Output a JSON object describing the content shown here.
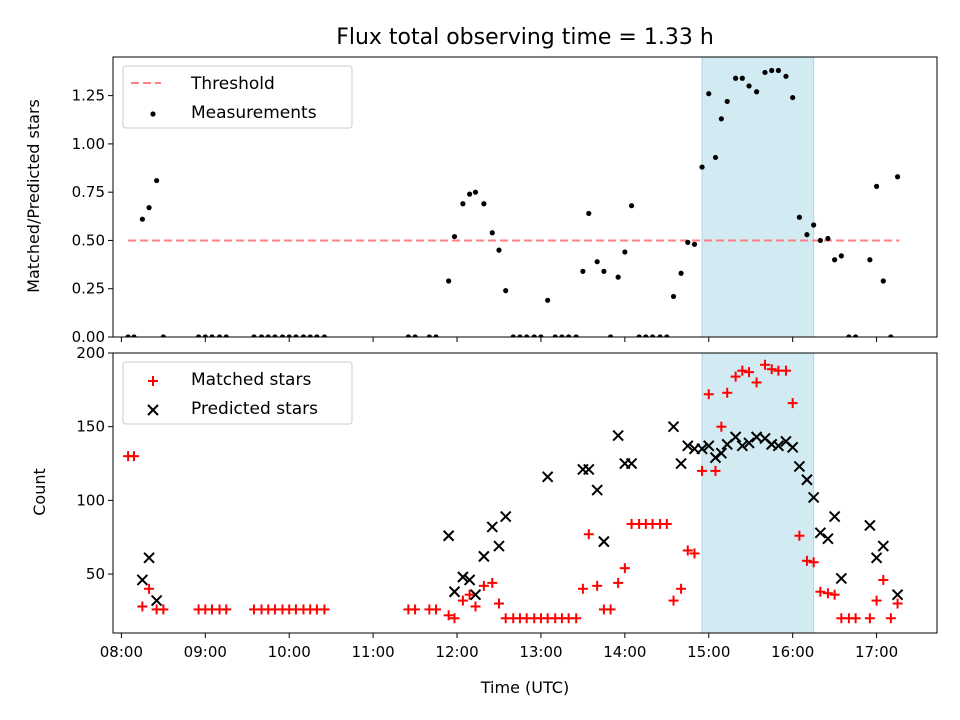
{
  "title": "Flux total observing time = 1.33 h",
  "chart_data": [
    {
      "type": "scatter",
      "ylabel": "Matched/Predicted stars",
      "xlim": [
        7.9,
        17.72
      ],
      "ylim": [
        0,
        1.45
      ],
      "yticks": [
        0.0,
        0.25,
        0.5,
        0.75,
        1.0,
        1.25
      ],
      "ytick_labels": [
        "0.00",
        "0.25",
        "0.50",
        "0.75",
        "1.00",
        "1.25"
      ],
      "highlight": {
        "x0": 14.92,
        "x1": 16.25,
        "color": "#add8e6"
      },
      "legend": {
        "position": "upper left",
        "entries": [
          {
            "label": "Threshold",
            "kind": "dashed-line",
            "color": "#ff7f7f"
          },
          {
            "label": "Measurements",
            "kind": "dot",
            "color": "#000000"
          }
        ]
      },
      "threshold": {
        "name": "Threshold",
        "value": 0.5,
        "x": [
          8.08,
          17.27
        ],
        "color": "#ff7f7f"
      },
      "measurements": {
        "name": "Measurements",
        "x": [
          8.08,
          8.15,
          8.25,
          8.33,
          8.42,
          8.5,
          8.92,
          9.0,
          9.08,
          9.17,
          9.25,
          9.58,
          9.67,
          9.75,
          9.83,
          9.92,
          10.0,
          10.08,
          10.17,
          10.25,
          10.33,
          10.42,
          11.42,
          11.5,
          11.67,
          11.75,
          11.9,
          11.97,
          12.07,
          12.15,
          12.22,
          12.32,
          12.42,
          12.5,
          12.58,
          12.67,
          12.75,
          12.83,
          12.92,
          13.0,
          13.08,
          13.17,
          13.25,
          13.33,
          13.42,
          13.5,
          13.57,
          13.67,
          13.75,
          13.83,
          13.92,
          14.0,
          14.08,
          14.17,
          14.25,
          14.33,
          14.42,
          14.5,
          14.58,
          14.67,
          14.75,
          14.83,
          14.92,
          15.0,
          15.08,
          15.15,
          15.22,
          15.32,
          15.4,
          15.48,
          15.57,
          15.67,
          15.75,
          15.83,
          15.92,
          16.0,
          16.08,
          16.17,
          16.25,
          16.33,
          16.42,
          16.5,
          16.58,
          16.67,
          16.75,
          16.92,
          17.0,
          17.08,
          17.17,
          17.25
        ],
        "y": [
          0,
          0,
          0.61,
          0.67,
          0.81,
          0,
          0,
          0,
          0,
          0,
          0,
          0,
          0,
          0,
          0,
          0,
          0,
          0,
          0,
          0,
          0,
          0,
          0,
          0,
          0,
          0,
          0.29,
          0.52,
          0.69,
          0.74,
          0.75,
          0.69,
          0.54,
          0.45,
          0.24,
          0,
          0,
          0,
          0,
          0,
          0.19,
          0,
          0,
          0,
          0,
          0.34,
          0.64,
          0.39,
          0.34,
          0,
          0.31,
          0.44,
          0.68,
          0,
          0,
          0,
          0,
          0,
          0.21,
          0.33,
          0.49,
          0.48,
          0.88,
          1.26,
          0.93,
          1.13,
          1.22,
          1.34,
          1.34,
          1.3,
          1.27,
          1.37,
          1.38,
          1.38,
          1.35,
          1.24,
          0.62,
          0.53,
          0.58,
          0.5,
          0.51,
          0.4,
          0.42,
          0,
          0,
          0.4,
          0.78,
          0.29,
          0,
          0.83
        ]
      }
    },
    {
      "type": "scatter",
      "xlabel": "Time (UTC)",
      "ylabel": "Count",
      "xlim": [
        7.9,
        17.72
      ],
      "ylim": [
        10,
        200
      ],
      "xticks": [
        8,
        9,
        10,
        11,
        12,
        13,
        14,
        15,
        16,
        17
      ],
      "xtick_labels": [
        "08:00",
        "09:00",
        "10:00",
        "11:00",
        "12:00",
        "13:00",
        "14:00",
        "15:00",
        "16:00",
        "17:00"
      ],
      "yticks": [
        50,
        100,
        150,
        200
      ],
      "ytick_labels": [
        "50",
        "100",
        "150",
        "200"
      ],
      "highlight": {
        "x0": 14.92,
        "x1": 16.25,
        "color": "#add8e6"
      },
      "legend": {
        "position": "upper left",
        "entries": [
          {
            "label": "Matched stars",
            "kind": "plus",
            "color": "#ff0000"
          },
          {
            "label": "Predicted stars",
            "kind": "cross",
            "color": "#000000"
          }
        ]
      },
      "series": [
        {
          "name": "Matched stars",
          "marker": "plus",
          "color": "#ff0000",
          "x": [
            8.08,
            8.15,
            8.25,
            8.33,
            8.42,
            8.5,
            8.92,
            9.0,
            9.08,
            9.17,
            9.25,
            9.58,
            9.67,
            9.75,
            9.83,
            9.92,
            10.0,
            10.08,
            10.17,
            10.25,
            10.33,
            10.42,
            11.42,
            11.5,
            11.67,
            11.75,
            11.9,
            11.97,
            12.07,
            12.15,
            12.22,
            12.32,
            12.42,
            12.5,
            12.58,
            12.67,
            12.75,
            12.83,
            12.92,
            13.0,
            13.08,
            13.17,
            13.25,
            13.33,
            13.42,
            13.5,
            13.57,
            13.67,
            13.75,
            13.83,
            13.92,
            14.0,
            14.08,
            14.17,
            14.25,
            14.33,
            14.42,
            14.5,
            14.58,
            14.67,
            14.75,
            14.83,
            14.92,
            15.0,
            15.08,
            15.15,
            15.22,
            15.32,
            15.4,
            15.48,
            15.57,
            15.67,
            15.75,
            15.83,
            15.92,
            16.0,
            16.08,
            16.17,
            16.25,
            16.33,
            16.42,
            16.5,
            16.58,
            16.67,
            16.75,
            16.92,
            17.0,
            17.08,
            17.17,
            17.25
          ],
          "y": [
            130,
            130,
            28,
            40,
            26,
            26,
            26,
            26,
            26,
            26,
            26,
            26,
            26,
            26,
            26,
            26,
            26,
            26,
            26,
            26,
            26,
            26,
            26,
            26,
            26,
            26,
            22,
            20,
            32,
            36,
            28,
            42,
            44,
            30,
            20,
            20,
            20,
            20,
            20,
            20,
            20,
            20,
            20,
            20,
            20,
            40,
            77,
            42,
            26,
            26,
            44,
            54,
            84,
            84,
            84,
            84,
            84,
            84,
            32,
            40,
            66,
            64,
            120,
            172,
            120,
            150,
            173,
            184,
            188,
            187,
            180,
            192,
            189,
            188,
            188,
            166,
            76,
            59,
            58,
            38,
            37,
            36,
            20,
            20,
            20,
            20,
            32,
            46,
            20,
            30
          ]
        },
        {
          "name": "Predicted stars",
          "marker": "cross",
          "color": "#000000",
          "x": [
            8.25,
            8.33,
            8.42,
            11.9,
            11.97,
            12.07,
            12.15,
            12.22,
            12.32,
            12.42,
            12.5,
            12.58,
            13.08,
            13.5,
            13.57,
            13.67,
            13.75,
            13.92,
            14.0,
            14.08,
            14.58,
            14.67,
            14.75,
            14.83,
            14.92,
            15.0,
            15.08,
            15.15,
            15.22,
            15.32,
            15.4,
            15.48,
            15.57,
            15.67,
            15.75,
            15.83,
            15.92,
            16.0,
            16.08,
            16.17,
            16.25,
            16.33,
            16.42,
            16.5,
            16.58,
            16.92,
            17.0,
            17.08,
            17.25
          ],
          "y": [
            46,
            61,
            32,
            76,
            38,
            48,
            46,
            36,
            62,
            82,
            69,
            89,
            116,
            121,
            121,
            107,
            72,
            144,
            125,
            125,
            150,
            125,
            137,
            135,
            135,
            137,
            129,
            132,
            138,
            143,
            137,
            139,
            143,
            142,
            138,
            137,
            140,
            136,
            123,
            114,
            102,
            78,
            74,
            89,
            47,
            83,
            61,
            69,
            36
          ]
        }
      ]
    }
  ]
}
